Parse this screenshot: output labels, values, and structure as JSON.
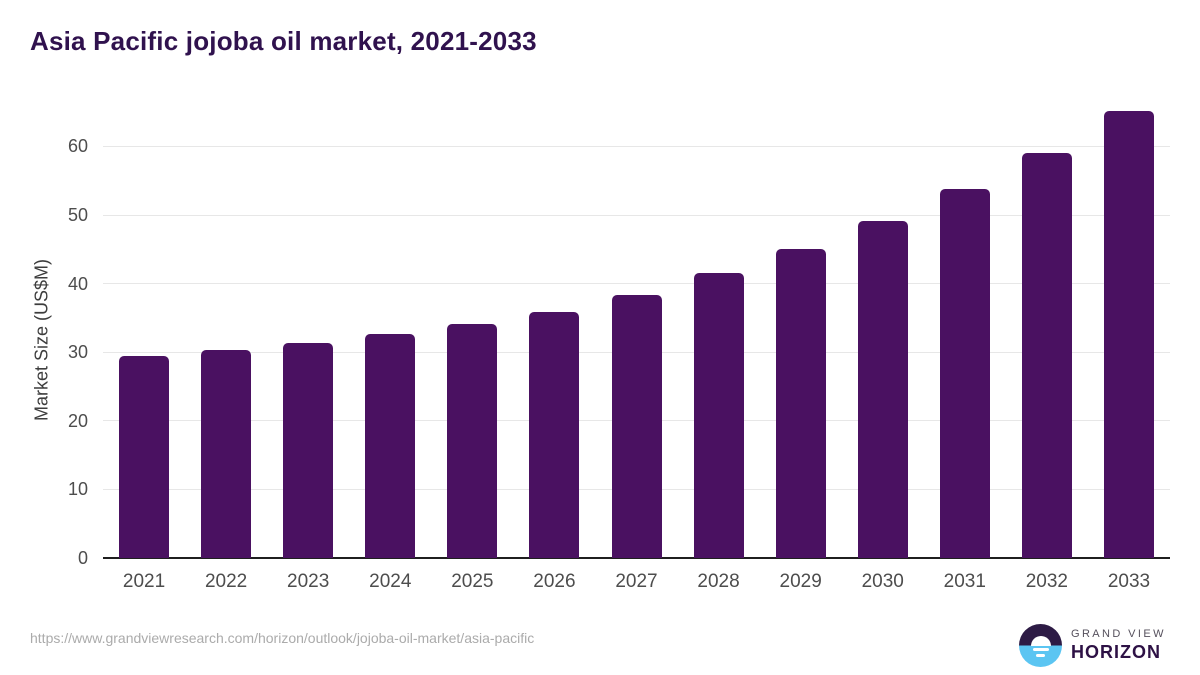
{
  "title": "Asia Pacific jojoba oil market, 2021-2033",
  "source_url": "https://www.grandviewresearch.com/horizon/outlook/jojoba-oil-market/asia-pacific",
  "logo": {
    "line1": "GRAND VIEW",
    "line2": "HORIZON"
  },
  "colors": {
    "bar": "#4a1161",
    "title": "#30124e",
    "axis_text": "#4d4d4d",
    "gridline": "#e7e7e7",
    "baseline": "#1f1f1f",
    "source_url_text": "#ababab",
    "logo_dark": "#2d1b45",
    "logo_blue": "#5bc5f2"
  },
  "chart_data": {
    "type": "bar",
    "title": "Asia Pacific jojoba oil market, 2021-2033",
    "xlabel": "",
    "ylabel": "Market Size (US$M)",
    "categories": [
      "2021",
      "2022",
      "2023",
      "2024",
      "2025",
      "2026",
      "2027",
      "2028",
      "2029",
      "2030",
      "2031",
      "2032",
      "2033"
    ],
    "values": [
      29.4,
      30.3,
      31.3,
      32.6,
      34.1,
      35.8,
      38.4,
      41.6,
      45.1,
      49.1,
      53.8,
      59.0,
      65.2
    ],
    "ylim": [
      0,
      67.5
    ],
    "yticks": [
      0,
      10,
      20,
      30,
      40,
      50,
      60
    ],
    "grid": true,
    "legend": false,
    "bar_color": "#4a1161"
  }
}
